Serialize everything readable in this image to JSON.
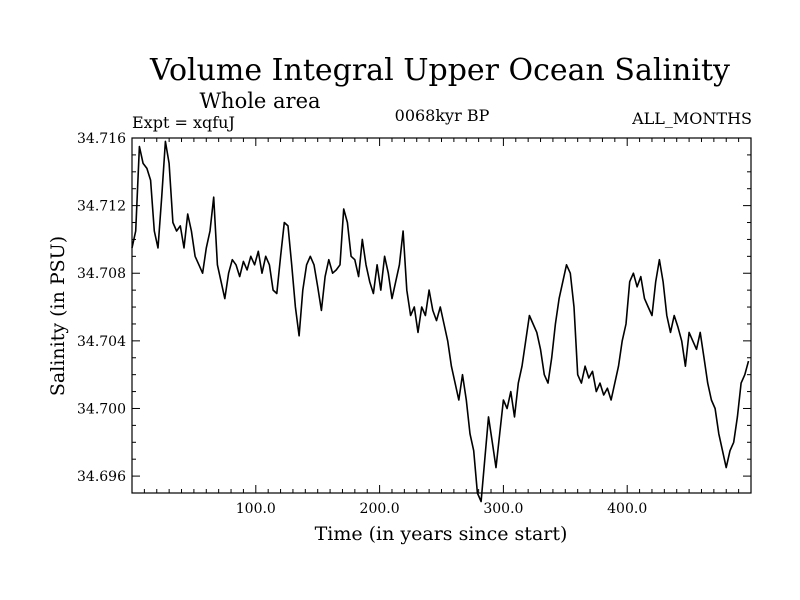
{
  "chart_data": {
    "type": "line",
    "title": "Volume Integral Upper Ocean Salinity",
    "subtitle": "Whole area",
    "experiment": "Expt = xqfuJ",
    "period": "0068kyr BP",
    "months": "ALL_MONTHS",
    "xlabel": "Time (in years since start)",
    "ylabel": "Salinity (in PSU)",
    "xlim": [
      0,
      500
    ],
    "ylim": [
      34.695,
      34.716
    ],
    "xticks": [
      100,
      200,
      300,
      400
    ],
    "xtick_labels": [
      "100.0",
      "200.0",
      "300.0",
      "400.0"
    ],
    "yticks": [
      34.696,
      34.7,
      34.704,
      34.708,
      34.712,
      34.716
    ],
    "ytick_labels": [
      "34.696",
      "34.700",
      "34.704",
      "34.708",
      "34.712",
      "34.716"
    ],
    "series": [
      {
        "name": "salinity",
        "x": [
          0,
          3,
          6,
          9,
          12,
          15,
          18,
          21,
          24,
          27,
          30,
          33,
          36,
          39,
          42,
          45,
          48,
          51,
          54,
          57,
          60,
          63,
          66,
          69,
          72,
          75,
          78,
          81,
          84,
          87,
          90,
          93,
          96,
          99,
          102,
          105,
          108,
          111,
          114,
          117,
          120,
          123,
          126,
          129,
          132,
          135,
          138,
          141,
          144,
          147,
          150,
          153,
          156,
          159,
          162,
          165,
          168,
          171,
          174,
          177,
          180,
          183,
          186,
          189,
          192,
          195,
          198,
          201,
          204,
          207,
          210,
          213,
          216,
          219,
          222,
          225,
          228,
          231,
          234,
          237,
          240,
          243,
          246,
          249,
          252,
          255,
          258,
          261,
          264,
          267,
          270,
          273,
          276,
          279,
          282,
          285,
          288,
          291,
          294,
          297,
          300,
          303,
          306,
          309,
          312,
          315,
          318,
          321,
          324,
          327,
          330,
          333,
          336,
          339,
          342,
          345,
          348,
          351,
          354,
          357,
          360,
          363,
          366,
          369,
          372,
          375,
          378,
          381,
          384,
          387,
          390,
          393,
          396,
          399,
          402,
          405,
          408,
          411,
          414,
          417,
          420,
          423,
          426,
          429,
          432,
          435,
          438,
          441,
          444,
          447,
          450,
          453,
          456,
          459,
          462,
          465,
          468,
          471,
          474,
          477,
          480,
          483,
          486,
          489,
          492,
          495,
          498
        ],
        "values": [
          34.7095,
          34.7105,
          34.7155,
          34.7145,
          34.7142,
          34.7135,
          34.7105,
          34.7095,
          34.7125,
          34.7158,
          34.7145,
          34.711,
          34.7105,
          34.7108,
          34.7095,
          34.7115,
          34.7105,
          34.709,
          34.7085,
          34.708,
          34.7095,
          34.7105,
          34.7125,
          34.7085,
          34.7075,
          34.7065,
          34.708,
          34.7088,
          34.7085,
          34.7078,
          34.7087,
          34.7082,
          34.709,
          34.7085,
          34.7093,
          34.708,
          34.709,
          34.7085,
          34.707,
          34.7068,
          34.709,
          34.711,
          34.7108,
          34.7085,
          34.706,
          34.7043,
          34.707,
          34.7085,
          34.709,
          34.7085,
          34.7072,
          34.7058,
          34.7078,
          34.7088,
          34.708,
          34.7082,
          34.7085,
          34.7118,
          34.711,
          34.709,
          34.7088,
          34.7078,
          34.71,
          34.7085,
          34.7075,
          34.7068,
          34.7085,
          34.707,
          34.709,
          34.708,
          34.7065,
          34.7075,
          34.7085,
          34.7105,
          34.707,
          34.7055,
          34.706,
          34.7045,
          34.706,
          34.7055,
          34.707,
          34.7058,
          34.7052,
          34.706,
          34.705,
          34.704,
          34.7025,
          34.7015,
          34.7005,
          34.702,
          34.7005,
          34.6985,
          34.6975,
          34.695,
          34.6945,
          34.697,
          34.6995,
          34.698,
          34.6965,
          34.6985,
          34.7005,
          34.7,
          34.701,
          34.6995,
          34.7015,
          34.7025,
          34.704,
          34.7055,
          34.705,
          34.7045,
          34.7035,
          34.702,
          34.7015,
          34.703,
          34.705,
          34.7065,
          34.7075,
          34.7085,
          34.708,
          34.706,
          34.702,
          34.7015,
          34.7025,
          34.7018,
          34.7022,
          34.701,
          34.7015,
          34.7008,
          34.7012,
          34.7005,
          34.7015,
          34.7025,
          34.704,
          34.705,
          34.7075,
          34.708,
          34.7072,
          34.7078,
          34.7065,
          34.706,
          34.7055,
          34.7075,
          34.7088,
          34.7075,
          34.7055,
          34.7045,
          34.7055,
          34.7048,
          34.704,
          34.7025,
          34.7045,
          34.704,
          34.7035,
          34.7045,
          34.703,
          34.7015,
          34.7005,
          34.7,
          34.6985,
          34.6975,
          34.6965,
          34.6975,
          34.698,
          34.6995,
          34.7015,
          34.702,
          34.7028
        ]
      }
    ]
  }
}
